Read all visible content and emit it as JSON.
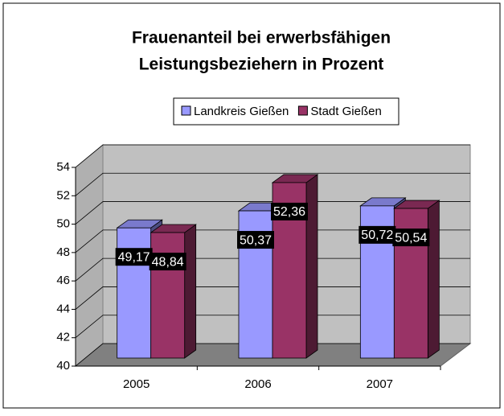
{
  "chart_data": {
    "type": "bar3d",
    "title": "Frauenanteil bei erwerbsfähigen",
    "subtitle": "Leistungsbeziehern in Prozent",
    "categories": [
      "2005",
      "2006",
      "2007"
    ],
    "series": [
      {
        "name": "Landkreis Gießen",
        "color": "#9999ff",
        "values": [
          49.17,
          50.37,
          50.72
        ],
        "value_labels": [
          "49,17",
          "50,37",
          "50,72"
        ]
      },
      {
        "name": "Stadt Gießen",
        "color": "#993366",
        "values": [
          48.84,
          52.36,
          50.54
        ],
        "value_labels": [
          "48,84",
          "52,36",
          "50,54"
        ]
      }
    ],
    "ylim": [
      40,
      54
    ],
    "yticks": [
      40,
      42,
      44,
      46,
      48,
      50,
      52,
      54
    ],
    "grid": true,
    "legend": "top"
  }
}
